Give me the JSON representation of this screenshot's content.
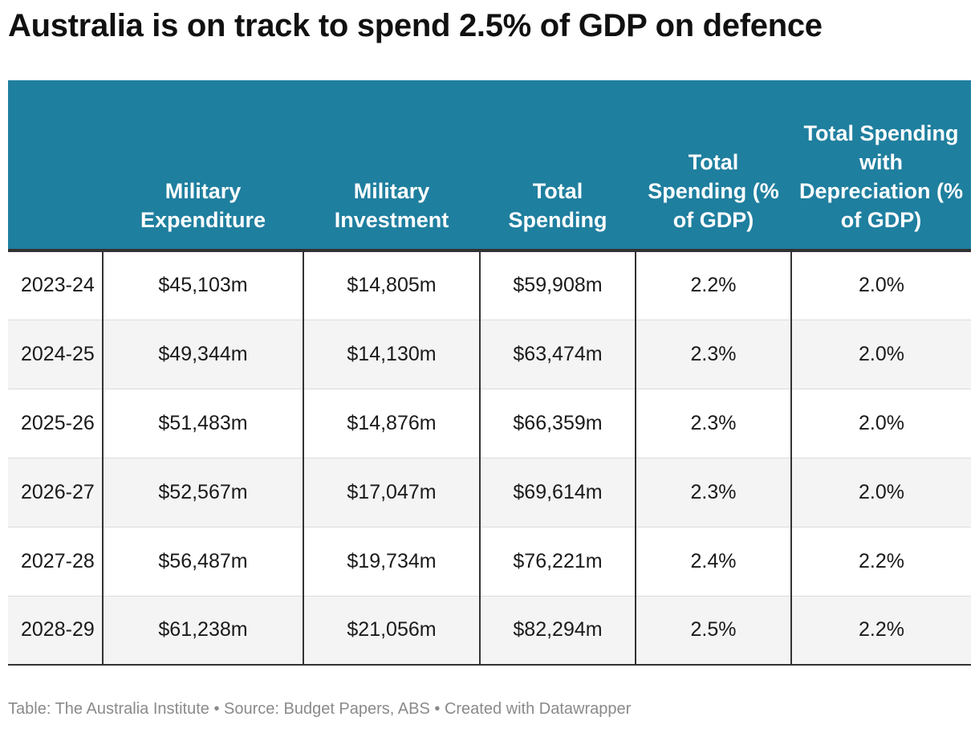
{
  "title": "Australia is on track to spend 2.5% of GDP on defence",
  "chart_data": {
    "type": "table",
    "columns": [
      "",
      "Military Expenditure",
      "Military Investment",
      "Total Spending",
      "Total Spending (% of GDP)",
      "Total Spending with Depreciation (% of GDP)"
    ],
    "rows": [
      [
        "2023-24",
        "$45,103m",
        "$14,805m",
        "$59,908m",
        "2.2%",
        "2.0%"
      ],
      [
        "2024-25",
        "$49,344m",
        "$14,130m",
        "$63,474m",
        "2.3%",
        "2.0%"
      ],
      [
        "2025-26",
        "$51,483m",
        "$14,876m",
        "$66,359m",
        "2.3%",
        "2.0%"
      ],
      [
        "2026-27",
        "$52,567m",
        "$17,047m",
        "$69,614m",
        "2.3%",
        "2.0%"
      ],
      [
        "2027-28",
        "$56,487m",
        "$19,734m",
        "$76,221m",
        "2.4%",
        "2.2%"
      ],
      [
        "2028-29",
        "$61,238m",
        "$21,056m",
        "$82,294m",
        "2.5%",
        "2.2%"
      ]
    ]
  },
  "footer": "Table: The Australia Institute  • Source: Budget Papers, ABS • Created with Datawrapper",
  "colors": {
    "header_bg": "#1f7f9f",
    "header_text": "#ffffff",
    "stripe": "#f4f4f4",
    "rule": "#333333"
  }
}
